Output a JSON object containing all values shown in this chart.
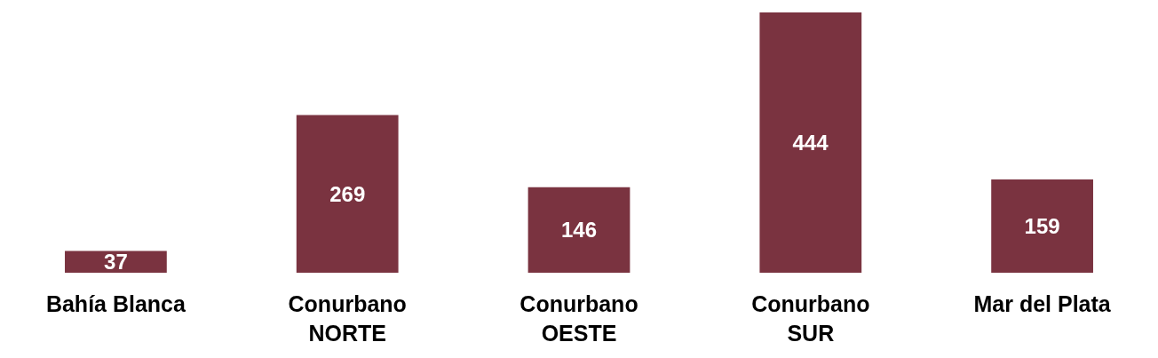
{
  "chart_data": {
    "type": "bar",
    "categories": [
      "Bahía Blanca",
      "Conurbano\nNORTE",
      "Conurbano\nOESTE",
      "Conurbano\nSUR",
      "Mar del Plata"
    ],
    "values": [
      37,
      269,
      146,
      444,
      159
    ],
    "color": "#7a3340",
    "data_labels": true
  }
}
